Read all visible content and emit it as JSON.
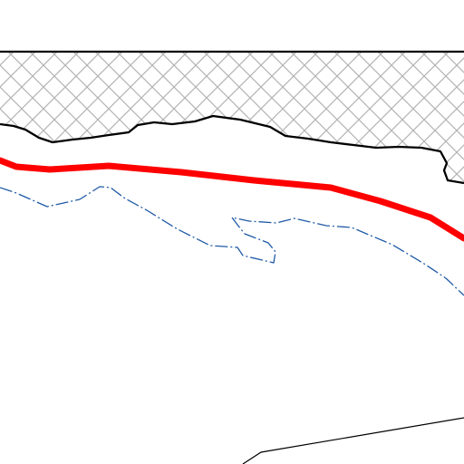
{
  "map": {
    "background_color": "#ffffff",
    "hatch_color": "#b3b3b3",
    "top_border_color": "#000000",
    "boundary_color": "#000000",
    "highlight_route_color": "#ff0000",
    "dashed_line_color": "#1f5aa6",
    "road_color": "#000000",
    "features": [
      {
        "kind": "hatched-area",
        "icon": "crosshatch-pattern"
      },
      {
        "kind": "solid-boundary-line"
      },
      {
        "kind": "highlighted-route"
      },
      {
        "kind": "dash-dot-boundary"
      },
      {
        "kind": "thin-road-line"
      }
    ]
  }
}
